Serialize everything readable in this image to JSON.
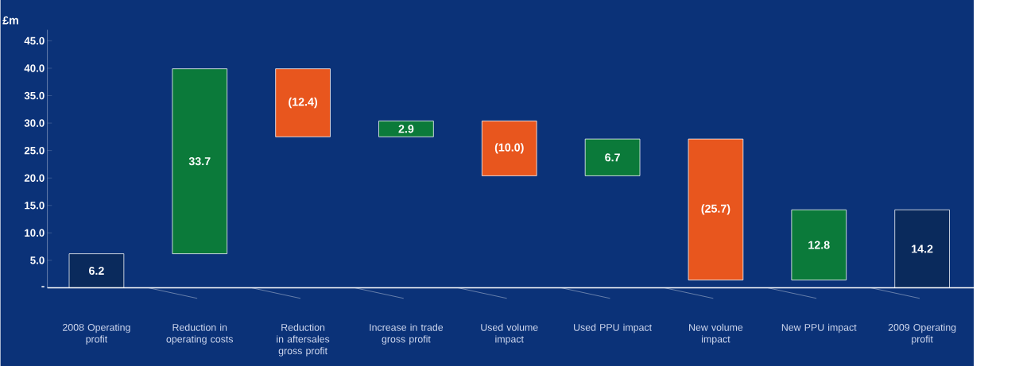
{
  "chart_data": {
    "type": "bar",
    "ylabel": "£m",
    "categories": [
      "2008 Operating profit",
      "Reduction in operating costs",
      "Reduction in aftersales gross profit",
      "Increase in trade gross profit",
      "Used volume impact",
      "Used PPU impact",
      "New volume impact",
      "New PPU impact",
      "2009 Operating profit"
    ],
    "values": [
      6.2,
      33.7,
      -12.4,
      2.9,
      -10.0,
      6.7,
      -25.7,
      12.8,
      14.2
    ],
    "base": [
      0,
      6.2,
      39.9,
      27.5,
      30.4,
      20.4,
      27.1,
      1.4,
      0
    ],
    "colors": [
      "#0a2a5c",
      "#0b7a3a",
      "#e8561e",
      "#0b7a3a",
      "#e8561e",
      "#0b7a3a",
      "#e8561e",
      "#0b7a3a",
      "#0a2a5c"
    ],
    "value_labels": [
      "6.2",
      "33.7",
      "(12.4)",
      "2.9",
      "(10.0)",
      "6.7",
      "(25.7)",
      "12.8",
      "14.2"
    ],
    "ylim": [
      0,
      47
    ],
    "yticks": [
      {
        "value": 0,
        "label": "-"
      },
      {
        "value": 5,
        "label": "5.0"
      },
      {
        "value": 10,
        "label": "10.0"
      },
      {
        "value": 15,
        "label": "15.0"
      },
      {
        "value": 20,
        "label": "20.0"
      },
      {
        "value": 25,
        "label": "25.0"
      },
      {
        "value": 30,
        "label": "30.0"
      },
      {
        "value": 35,
        "label": "35.0"
      },
      {
        "value": 40,
        "label": "40.0"
      },
      {
        "value": 45,
        "label": "45.0"
      }
    ]
  }
}
